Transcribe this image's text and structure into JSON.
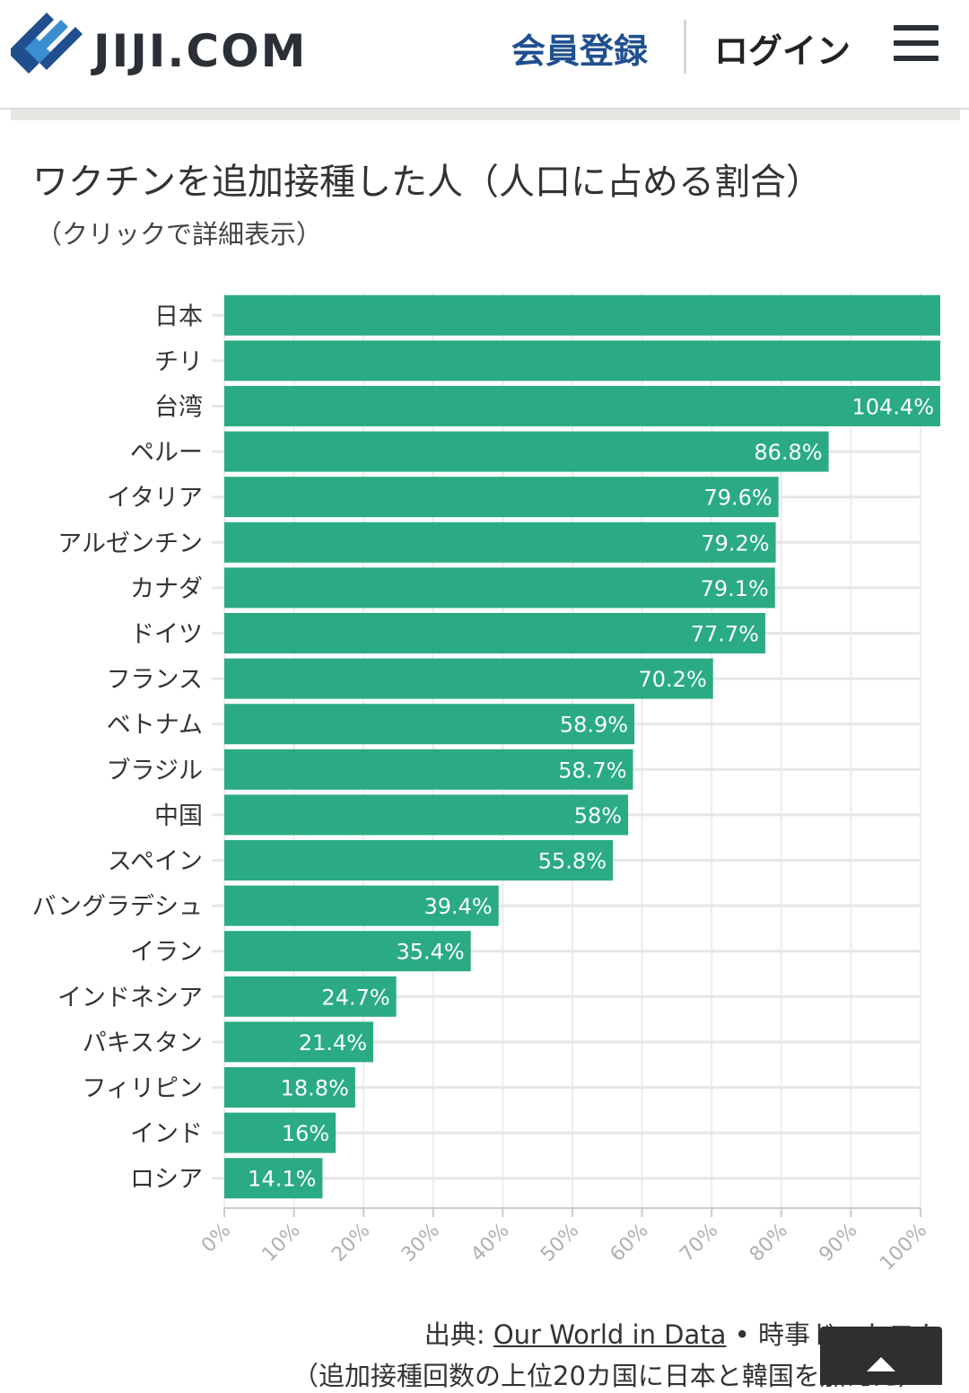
{
  "header": {
    "logo_text": "JIJI.COM",
    "register_label": "会員登録",
    "login_label": "ログイン"
  },
  "colors": {
    "bar": "#2aab84",
    "brand": "#1f4f8f"
  },
  "chart_data": {
    "type": "bar",
    "orientation": "horizontal",
    "title": "ワクチンを追加接種した人（人口に占める割合）",
    "subtitle": "（クリックで詳細表示）",
    "categories": [
      "日本",
      "チリ",
      "台湾",
      "ペルー",
      "イタリア",
      "アルゼンチン",
      "カナダ",
      "ドイツ",
      "フランス",
      "ベトナム",
      "ブラジル",
      "中国",
      "スペイン",
      "バングラデシュ",
      "イラン",
      "インドネシア",
      "パキスタン",
      "フィリピン",
      "インド",
      "ロシア"
    ],
    "values": [
      null,
      null,
      104.4,
      86.8,
      79.6,
      79.2,
      79.1,
      77.7,
      70.2,
      58.9,
      58.7,
      58,
      55.8,
      39.4,
      35.4,
      24.7,
      21.4,
      18.8,
      16,
      14.1
    ],
    "value_labels": [
      "",
      "",
      "104.4%",
      "86.8%",
      "79.6%",
      "79.2%",
      "79.1%",
      "77.7%",
      "70.2%",
      "58.9%",
      "58.7%",
      "58%",
      "55.8%",
      "39.4%",
      "35.4%",
      "24.7%",
      "21.4%",
      "18.8%",
      "16%",
      "14.1%"
    ],
    "xlim": [
      0,
      100
    ],
    "x_ticks": [
      "0%",
      "10%",
      "20%",
      "30%",
      "40%",
      "50%",
      "60%",
      "70%",
      "80%",
      "90%",
      "100%"
    ],
    "grid": true
  },
  "source": {
    "prefix": "出典:",
    "link_text": "Our World in Data",
    "separator": "•",
    "suffix": "時事ドットコム",
    "note": "（追加接種回数の上位20カ国に日本と韓国を加えた）"
  }
}
